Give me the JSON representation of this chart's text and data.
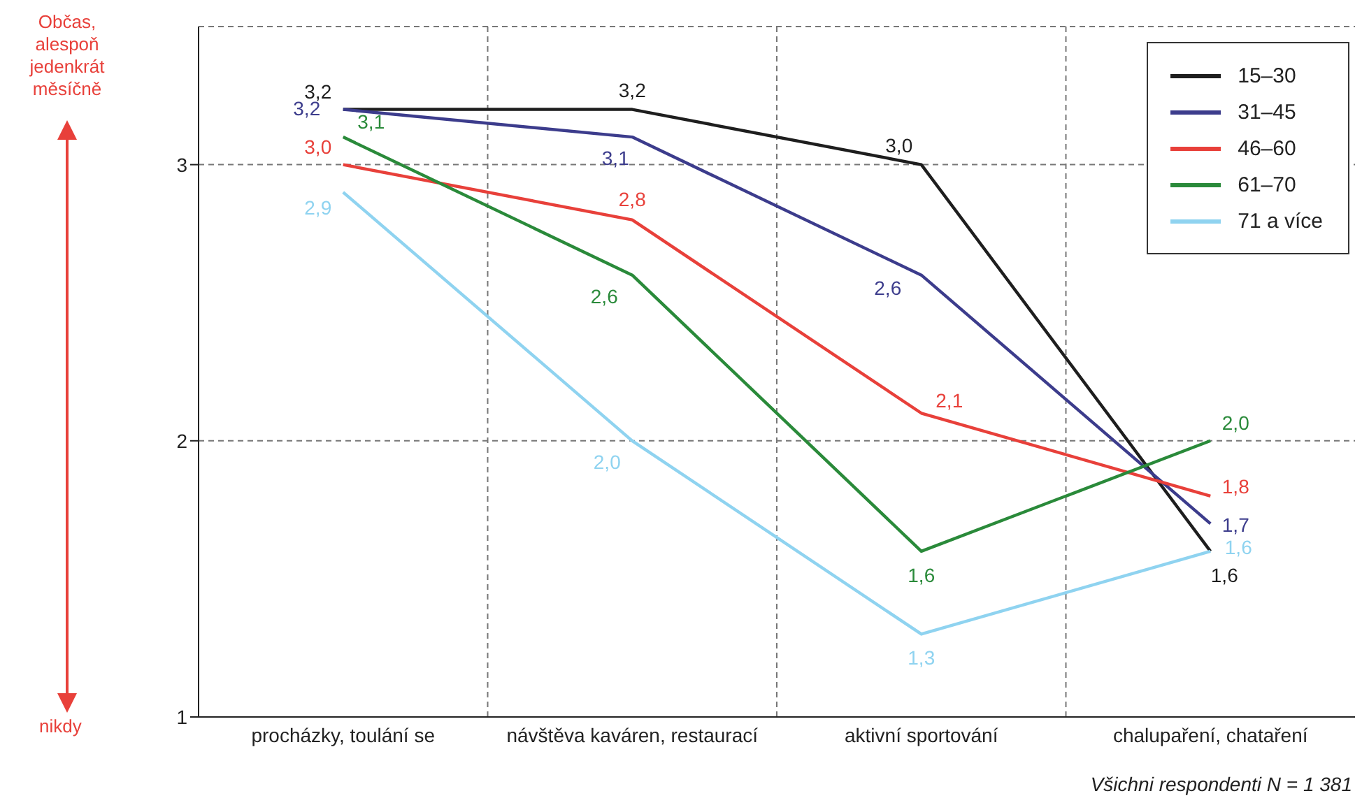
{
  "chart_data": {
    "type": "line",
    "categories": [
      "procházky, toulání se",
      "návštěva kaváren, restaurací",
      "aktivní sportování",
      "chalupaření, chataření"
    ],
    "series": [
      {
        "name": "15–30",
        "color": "#1e1e1e",
        "values": [
          3.2,
          3.2,
          3.0,
          1.6
        ],
        "value_labels": [
          "3,2",
          "3,2",
          "3,0",
          "1,6"
        ]
      },
      {
        "name": "31–45",
        "color": "#3c3c8c",
        "values": [
          3.2,
          3.1,
          2.6,
          1.7
        ],
        "value_labels": [
          "3,2",
          "3,1",
          "2,6",
          "1,7"
        ]
      },
      {
        "name": "46–60",
        "color": "#e8403a",
        "values": [
          3.0,
          2.8,
          2.1,
          1.8
        ],
        "value_labels": [
          "3,0",
          "2,8",
          "2,1",
          "1,8"
        ]
      },
      {
        "name": "61–70",
        "color": "#2a8a3a",
        "values": [
          3.1,
          2.6,
          1.6,
          2.0
        ],
        "value_labels": [
          "3,1",
          "2,6",
          "1,6",
          "2,0"
        ]
      },
      {
        "name": "71 a více",
        "color": "#8fd3f0",
        "values": [
          2.9,
          2.0,
          1.3,
          1.6
        ],
        "value_labels": [
          "2,9",
          "2,0",
          "1,3",
          "1,6"
        ]
      }
    ],
    "ylim": [
      1,
      3.5
    ],
    "yticks": [
      1,
      2,
      3
    ],
    "grid": true,
    "legend": "top right",
    "marker": "none",
    "line_style": "solid",
    "annotations": [
      "Občas, alespoň jedenkrát měsíčně",
      "nikdy",
      "Všichni respondenti N = 1 381"
    ]
  }
}
